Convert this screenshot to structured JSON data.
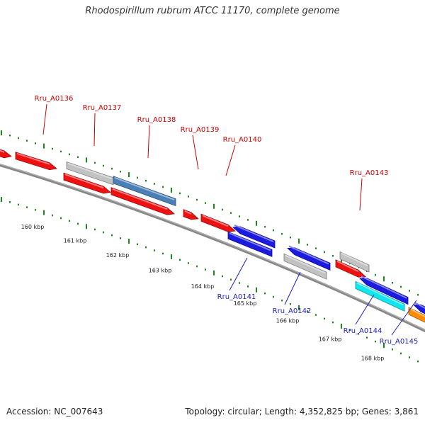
{
  "title": "Rhodospirillum rubrum ATCC 11170, complete genome",
  "footer": {
    "accession": "Accession: NC_007643",
    "summary": "Topology: circular; Length: 4,352,825 bp; Genes: 3,861"
  },
  "colors": {
    "forward_gene": "#ee1111",
    "reverse_gene": "#1a1ae0",
    "grey_gene": "#c2c2c2",
    "steelblue_gene": "#4a7fb8",
    "cyan_gene": "#11e6ee",
    "orange_gene": "#ff8c00",
    "tick": "#1b8a1b",
    "backbone": "#888888",
    "forward_label": "#cc0000",
    "reverse_label": "#1c1cc8"
  },
  "scale_ticks": [
    "160 kbp",
    "161 kbp",
    "162 kbp",
    "163 kbp",
    "164 kbp",
    "165 kbp",
    "166 kbp",
    "167 kbp",
    "168 kbp"
  ],
  "gene_labels": [
    "Rru_A0136",
    "Rru_A0137",
    "Rru_A0138",
    "Rru_A0139",
    "Rru_A0140",
    "Rru_A0141",
    "Rru_A0142",
    "Rru_A0143",
    "Rru_A0144",
    "Rru_A0145"
  ]
}
